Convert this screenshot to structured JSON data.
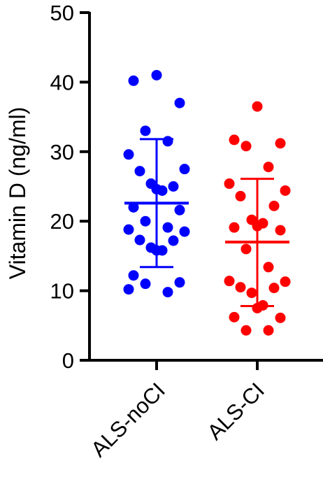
{
  "chart_data": {
    "type": "scatter",
    "ylabel": "Vitamin D (ng/ml)",
    "xlabel": "",
    "ylim": [
      0,
      50
    ],
    "yticks": [
      0,
      10,
      20,
      30,
      40,
      50
    ],
    "categories": [
      "ALS-noCI",
      "ALS-CI"
    ],
    "series": [
      {
        "color": "#0000ff",
        "values": [
          41.0,
          40.2,
          37.0,
          33.0,
          31.5,
          29.6,
          27.5,
          27.2,
          25.0,
          25.4,
          24.4,
          24.6,
          22.0,
          21.6,
          20.0,
          19.1,
          18.8,
          18.5,
          17.3,
          17.2,
          16.2,
          15.8,
          15.8,
          12.2,
          11.2,
          11.0,
          9.8,
          10.2
        ],
        "mean": 22.6,
        "sd_upper": 31.8,
        "sd_lower": 13.4
      },
      {
        "color": "#ff0000",
        "values": [
          36.5,
          31.7,
          31.2,
          30.8,
          27.8,
          25.4,
          24.4,
          23.6,
          22.2,
          20.2,
          19.7,
          19.3,
          19.1,
          18.7,
          16.0,
          13.4,
          11.4,
          11.3,
          10.5,
          10.4,
          9.7,
          7.9,
          7.5,
          6.2,
          6.1,
          4.3,
          4.3
        ],
        "mean": 17.0,
        "sd_upper": 26.1,
        "sd_lower": 7.8
      }
    ]
  }
}
